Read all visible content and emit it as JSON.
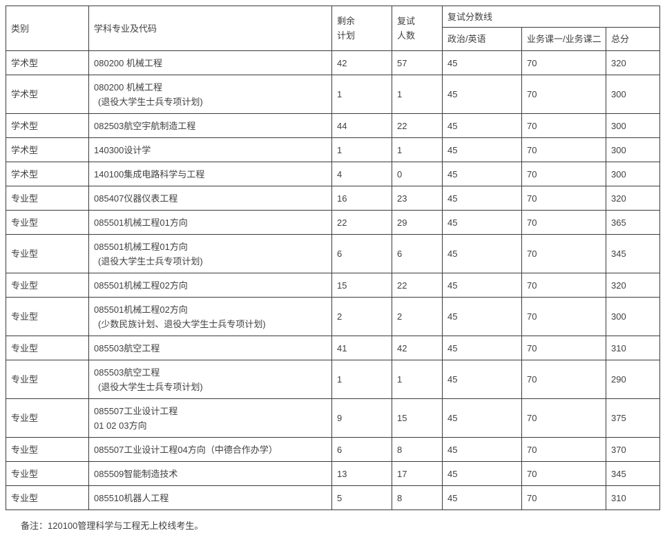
{
  "page": {
    "background": "#ffffff",
    "border_color": "#3a3a3a",
    "text_color": "#404040"
  },
  "table": {
    "headers": {
      "category": "类别",
      "major": "学科专业及代码",
      "remaining_plan": "剩余\n计划",
      "retest_count": "复试\n人数",
      "score_line_group": "复试分数线",
      "politics_english": "政治/英语",
      "courses": "业务课一/业务课二",
      "total": "总分"
    },
    "rows": [
      {
        "category": "学术型",
        "major_lines": [
          "080200 机械工程"
        ],
        "remaining": "42",
        "retest": "57",
        "politics_english": "45",
        "courses": "70",
        "total": "320"
      },
      {
        "category": "学术型",
        "major_lines": [
          "080200 机械工程",
          "(退役大学生士兵专项计划)"
        ],
        "remaining": "1",
        "retest": "1",
        "politics_english": "45",
        "courses": "70",
        "total": "300"
      },
      {
        "category": "学术型",
        "major_lines": [
          "082503航空宇航制造工程"
        ],
        "remaining": "44",
        "retest": "22",
        "politics_english": "45",
        "courses": "70",
        "total": "300"
      },
      {
        "category": "学术型",
        "major_lines": [
          "140300设计学"
        ],
        "remaining": "1",
        "retest": "1",
        "politics_english": "45",
        "courses": "70",
        "total": "300"
      },
      {
        "category": "学术型",
        "major_lines": [
          "140100集成电路科学与工程"
        ],
        "remaining": "4",
        "retest": "0",
        "politics_english": "45",
        "courses": "70",
        "total": "300"
      },
      {
        "category": "专业型",
        "major_lines": [
          "085407仪器仪表工程"
        ],
        "remaining": "16",
        "retest": "23",
        "politics_english": "45",
        "courses": "70",
        "total": "320"
      },
      {
        "category": "专业型",
        "major_lines": [
          "085501机械工程01方向"
        ],
        "remaining": "22",
        "retest": "29",
        "politics_english": "45",
        "courses": "70",
        "total": "365"
      },
      {
        "category": "专业型",
        "major_lines": [
          "085501机械工程01方向",
          "(退役大学生士兵专项计划)"
        ],
        "remaining": "6",
        "retest": "6",
        "politics_english": "45",
        "courses": "70",
        "total": "345"
      },
      {
        "category": "专业型",
        "major_lines": [
          "085501机械工程02方向"
        ],
        "remaining": "15",
        "retest": "22",
        "politics_english": "45",
        "courses": "70",
        "total": "320"
      },
      {
        "category": "专业型",
        "major_lines": [
          "085501机械工程02方向",
          "(少数民族计划、退役大学生士兵专项计划)"
        ],
        "remaining": "2",
        "retest": "2",
        "politics_english": "45",
        "courses": "70",
        "total": "300"
      },
      {
        "category": "专业型",
        "major_lines": [
          "085503航空工程"
        ],
        "remaining": "41",
        "retest": "42",
        "politics_english": "45",
        "courses": "70",
        "total": "310"
      },
      {
        "category": "专业型",
        "major_lines": [
          "085503航空工程",
          "(退役大学生士兵专项计划)"
        ],
        "remaining": "1",
        "retest": "1",
        "politics_english": "45",
        "courses": "70",
        "total": "290"
      },
      {
        "category": "专业型",
        "major_lines": [
          "085507工业设计工程",
          "01 02 03方向"
        ],
        "remaining": "9",
        "retest": "15",
        "politics_english": "45",
        "courses": "70",
        "total": "375"
      },
      {
        "category": "专业型",
        "major_lines": [
          "085507工业设计工程04方向（中德合作办学）"
        ],
        "remaining": "6",
        "retest": "8",
        "politics_english": "45",
        "courses": "70",
        "total": "370"
      },
      {
        "category": "专业型",
        "major_lines": [
          "085509智能制造技术"
        ],
        "remaining": "13",
        "retest": "17",
        "politics_english": "45",
        "courses": "70",
        "total": "345"
      },
      {
        "category": "专业型",
        "major_lines": [
          "085510机器人工程"
        ],
        "remaining": "5",
        "retest": "8",
        "politics_english": "45",
        "courses": "70",
        "total": "310"
      }
    ]
  },
  "footnote": "备注：120100管理科学与工程无上校线考生。"
}
